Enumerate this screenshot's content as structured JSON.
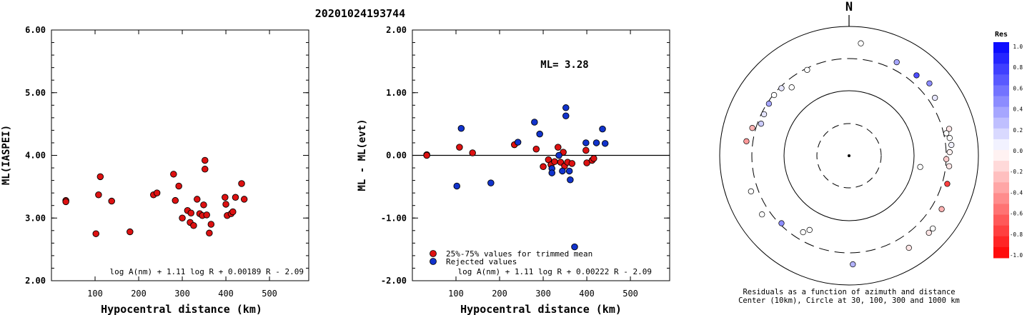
{
  "event_id": "20201024193744",
  "chart_data": [
    {
      "type": "scatter",
      "ylabel": "ML(IASPEI)",
      "xlabel": "Hypocentral distance (km)",
      "xlim": [
        0,
        590
      ],
      "ylim": [
        2.0,
        6.0
      ],
      "xticks": [
        100,
        200,
        300,
        400,
        500
      ],
      "yticks": [
        2.0,
        3.0,
        4.0,
        5.0,
        6.0
      ],
      "xtick_labels": [
        "100",
        "200",
        "300",
        "400",
        "500"
      ],
      "ytick_labels": [
        "2.00",
        "3.00",
        "4.00",
        "5.00",
        "6.00"
      ],
      "formula": "log A(nm) + 1.11 log R + 0.00189 R - 2.09",
      "marker_color": "#dd1111",
      "points": [
        [
          33,
          3.28
        ],
        [
          33,
          3.26
        ],
        [
          102,
          2.75
        ],
        [
          108,
          3.37
        ],
        [
          112,
          3.66
        ],
        [
          138,
          3.27
        ],
        [
          180,
          2.78
        ],
        [
          234,
          3.37
        ],
        [
          242,
          3.4
        ],
        [
          280,
          3.7
        ],
        [
          284,
          3.28
        ],
        [
          292,
          3.51
        ],
        [
          300,
          3.0
        ],
        [
          312,
          3.12
        ],
        [
          318,
          2.93
        ],
        [
          320,
          3.08
        ],
        [
          326,
          2.88
        ],
        [
          334,
          3.3
        ],
        [
          340,
          3.07
        ],
        [
          346,
          3.04
        ],
        [
          349,
          3.21
        ],
        [
          352,
          3.92
        ],
        [
          352,
          3.78
        ],
        [
          356,
          3.05
        ],
        [
          362,
          2.76
        ],
        [
          366,
          2.9
        ],
        [
          398,
          3.33
        ],
        [
          400,
          3.22
        ],
        [
          403,
          3.04
        ],
        [
          412,
          3.07
        ],
        [
          416,
          3.1
        ],
        [
          422,
          3.33
        ],
        [
          436,
          3.55
        ],
        [
          442,
          3.3
        ]
      ]
    },
    {
      "type": "scatter",
      "ylabel": "ML - ML(evt)",
      "xlabel": "Hypocentral distance (km)",
      "xlim": [
        0,
        590
      ],
      "ylim": [
        -2.0,
        2.0
      ],
      "xticks": [
        100,
        200,
        300,
        400,
        500
      ],
      "yticks": [
        -2.0,
        -1.0,
        0.0,
        1.0,
        2.0
      ],
      "xtick_labels": [
        "100",
        "200",
        "300",
        "400",
        "500"
      ],
      "ytick_labels": [
        "-2.00",
        "-1.00",
        "0.00",
        "1.00",
        "2.00"
      ],
      "annotation": "ML= 3.28",
      "formula": "log A(nm) + 1.11 log R + 0.00222 R - 2.09",
      "series": [
        {
          "name": "25%-75% values for trimmed mean",
          "color": "#dd1111",
          "points": [
            [
              33,
              0.01
            ],
            [
              33,
              0.0
            ],
            [
              108,
              0.13
            ],
            [
              138,
              0.04
            ],
            [
              234,
              0.17
            ],
            [
              284,
              0.1
            ],
            [
              300,
              -0.18
            ],
            [
              312,
              -0.07
            ],
            [
              318,
              -0.15
            ],
            [
              326,
              -0.1
            ],
            [
              334,
              0.13
            ],
            [
              340,
              -0.11
            ],
            [
              346,
              0.05
            ],
            [
              349,
              -0.17
            ],
            [
              356,
              -0.11
            ],
            [
              366,
              -0.13
            ],
            [
              398,
              0.08
            ],
            [
              400,
              -0.12
            ],
            [
              412,
              -0.08
            ],
            [
              416,
              -0.05
            ]
          ]
        },
        {
          "name": "Rejected values",
          "color": "#1133cc",
          "points": [
            [
              102,
              -0.49
            ],
            [
              112,
              0.43
            ],
            [
              180,
              -0.44
            ],
            [
              242,
              0.21
            ],
            [
              280,
              0.53
            ],
            [
              292,
              0.34
            ],
            [
              320,
              -0.21
            ],
            [
              320,
              -0.28
            ],
            [
              336,
              0.0
            ],
            [
              344,
              -0.25
            ],
            [
              352,
              0.76
            ],
            [
              352,
              0.63
            ],
            [
              360,
              -0.25
            ],
            [
              362,
              -0.39
            ],
            [
              372,
              -1.46
            ],
            [
              398,
              0.2
            ],
            [
              422,
              0.2
            ],
            [
              436,
              0.42
            ],
            [
              442,
              0.19
            ]
          ]
        }
      ]
    },
    {
      "type": "polar-scatter",
      "north_label": "N",
      "caption_line1": "Residuals as a function of azimuth and distance",
      "caption_line2": "Center (10km), Circle at 30, 100, 300 and 1000 km",
      "rings_km": [
        30,
        100,
        300,
        1000
      ],
      "points": [
        {
          "az": 290,
          "d": 280,
          "res": 0.2
        },
        {
          "az": 296,
          "d": 290,
          "res": 0.1
        },
        {
          "az": 303,
          "d": 300,
          "res": 0.35
        },
        {
          "az": 309,
          "d": 310,
          "res": 0.0
        },
        {
          "az": 315,
          "d": 300,
          "res": 0.1
        },
        {
          "az": 320,
          "d": 240,
          "res": 0.0
        },
        {
          "az": 334,
          "d": 300,
          "res": 0.0
        },
        {
          "az": 6,
          "d": 560,
          "res": 0.0
        },
        {
          "az": 27,
          "d": 420,
          "res": 0.35
        },
        {
          "az": 40,
          "d": 420,
          "res": 0.7
        },
        {
          "az": 48,
          "d": 470,
          "res": 0.45
        },
        {
          "az": 56,
          "d": 400,
          "res": 0.1
        },
        {
          "az": 75,
          "d": 400,
          "res": -0.1
        },
        {
          "az": 77,
          "d": 350,
          "res": 0.0
        },
        {
          "az": 80,
          "d": 380,
          "res": 0.0
        },
        {
          "az": 84,
          "d": 390,
          "res": 0.05
        },
        {
          "az": 88,
          "d": 360,
          "res": -0.05
        },
        {
          "az": 92,
          "d": 320,
          "res": -0.2
        },
        {
          "az": 96,
          "d": 360,
          "res": -0.1
        },
        {
          "az": 99,
          "d": 130,
          "res": 0.0
        },
        {
          "az": 106,
          "d": 380,
          "res": -0.75
        },
        {
          "az": 120,
          "d": 450,
          "res": -0.3
        },
        {
          "az": 131,
          "d": 520,
          "res": 0.0
        },
        {
          "az": 134,
          "d": 520,
          "res": -0.1
        },
        {
          "az": 147,
          "d": 500,
          "res": -0.1
        },
        {
          "az": 178,
          "d": 480,
          "res": 0.3
        },
        {
          "az": 208,
          "d": 200,
          "res": 0.0
        },
        {
          "az": 211,
          "d": 240,
          "res": 0.0
        },
        {
          "az": 225,
          "d": 300,
          "res": 0.45
        },
        {
          "az": 236,
          "d": 420,
          "res": 0.0
        },
        {
          "az": 250,
          "d": 410,
          "res": 0.0
        },
        {
          "az": 278,
          "d": 400,
          "res": -0.4
        },
        {
          "az": 286,
          "d": 360,
          "res": -0.3
        }
      ]
    },
    {
      "type": "colorbar",
      "title": "Res",
      "levels": [
        "1.0",
        "0.8",
        "0.6",
        "0.4",
        "0.2",
        "0.0",
        "-0.2",
        "-0.4",
        "-0.6",
        "-0.8",
        "-1.0"
      ]
    }
  ]
}
